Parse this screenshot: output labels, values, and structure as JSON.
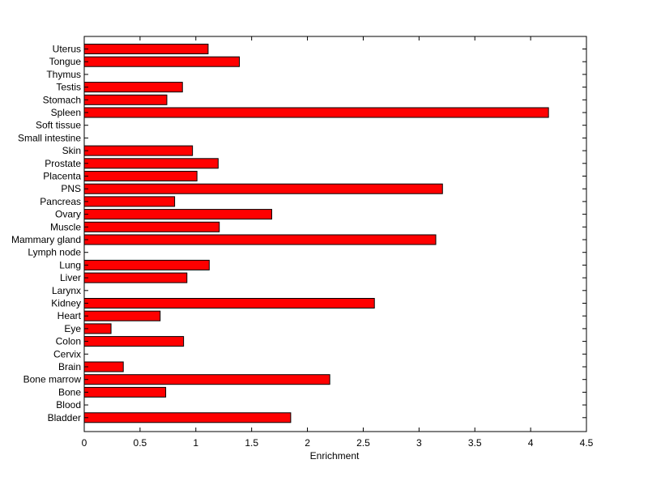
{
  "chart_data": {
    "type": "bar",
    "orientation": "horizontal",
    "categories": [
      "Uterus",
      "Tongue",
      "Thymus",
      "Testis",
      "Stomach",
      "Spleen",
      "Soft tissue",
      "Small intestine",
      "Skin",
      "Prostate",
      "Placenta",
      "PNS",
      "Pancreas",
      "Ovary",
      "Muscle",
      "Mammary gland",
      "Lymph node",
      "Lung",
      "Liver",
      "Larynx",
      "Kidney",
      "Heart",
      "Eye",
      "Colon",
      "Cervix",
      "Brain",
      "Bone marrow",
      "Bone",
      "Blood",
      "Bladder"
    ],
    "values": [
      1.11,
      1.39,
      0,
      0.88,
      0.74,
      4.16,
      0,
      0,
      0.97,
      1.2,
      1.01,
      3.21,
      0.81,
      1.68,
      1.21,
      3.15,
      0,
      1.12,
      0.92,
      0,
      2.6,
      0.68,
      0.24,
      0.89,
      0,
      0.35,
      2.2,
      0.73,
      0,
      1.85
    ],
    "xlabel": "Enrichment",
    "ylabel": "",
    "title": "",
    "xlim": [
      0,
      4.5
    ],
    "xticks": [
      0,
      0.5,
      1,
      1.5,
      2,
      2.5,
      3,
      3.5,
      4,
      4.5
    ],
    "xtick_labels": [
      "0",
      "0.5",
      "1",
      "1.5",
      "2",
      "2.5",
      "3",
      "3.5",
      "4",
      "4.5"
    ],
    "grid": false,
    "bar_color": "#ff0000",
    "bar_edge_color": "#000000"
  }
}
